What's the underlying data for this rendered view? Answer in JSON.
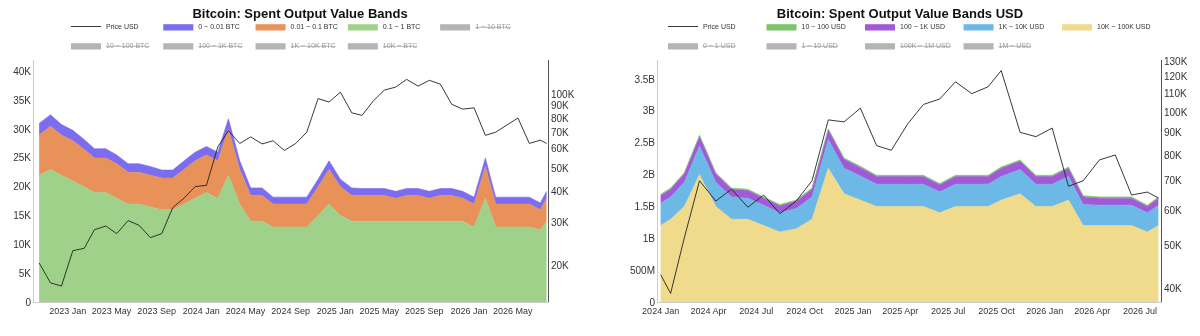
{
  "chart_data": [
    {
      "type": "area",
      "title": "Bitcoin: Spent Output Value Bands",
      "stacked": true,
      "legend": "top",
      "grid": false,
      "log": "y2",
      "x": [
        "2022-10-15",
        "2022-11-15",
        "2022-12-15",
        "2023-01-15",
        "2023-02-15",
        "2023-03-15",
        "2023-04-15",
        "2023-05-15",
        "2023-06-15",
        "2023-07-15",
        "2023-08-15",
        "2023-09-15",
        "2023-10-15",
        "2023-11-15",
        "2023-12-15",
        "2024-01-15",
        "2024-02-15",
        "2024-03-15",
        "2024-04-15",
        "2024-05-15",
        "2024-06-15",
        "2024-07-15",
        "2024-08-15",
        "2024-09-15",
        "2024-10-15",
        "2024-11-15",
        "2024-12-15",
        "2025-01-15",
        "2025-02-15",
        "2025-03-15",
        "2025-04-15",
        "2025-05-15",
        "2025-06-15",
        "2025-07-15",
        "2025-08-15",
        "2025-09-15",
        "2025-10-15",
        "2025-11-15",
        "2025-12-15",
        "2026-01-15",
        "2026-02-15",
        "2026-03-15",
        "2026-04-15",
        "2026-05-15",
        "2026-06-15",
        "2026-07-15",
        "2026-08-01"
      ],
      "xlim": [
        "2022-10-01",
        "2026-08-05"
      ],
      "xticks": [
        {
          "value": "2023-01-01",
          "label": "2023 Jan"
        },
        {
          "value": "2023-05-01",
          "label": "2023 May"
        },
        {
          "value": "2023-09-01",
          "label": "2023 Sep"
        },
        {
          "value": "2024-01-01",
          "label": "2024 Jan"
        },
        {
          "value": "2024-05-01",
          "label": "2024 May"
        },
        {
          "value": "2024-09-01",
          "label": "2024 Sep"
        },
        {
          "value": "2025-01-01",
          "label": "2025 Jan"
        },
        {
          "value": "2025-05-01",
          "label": "2025 May"
        },
        {
          "value": "2025-09-01",
          "label": "2025 Sep"
        },
        {
          "value": "2026-01-01",
          "label": "2026 Jan"
        },
        {
          "value": "2026-05-01",
          "label": "2026 May"
        }
      ],
      "ylim": [
        0,
        42000
      ],
      "yticks": [
        0,
        {
          "value": 5000,
          "label": "5K"
        },
        {
          "value": 10000,
          "label": "10K"
        },
        {
          "value": 15000,
          "label": "15K"
        },
        {
          "value": 20000,
          "label": "20K"
        },
        {
          "value": 25000,
          "label": "25K"
        },
        {
          "value": 30000,
          "label": "30K"
        },
        {
          "value": 35000,
          "label": "35K"
        },
        {
          "value": 40000,
          "label": "40K"
        }
      ],
      "y2lim": [
        14200,
        138000
      ],
      "y2ticks": [
        {
          "value": 20000,
          "label": "20K"
        },
        {
          "value": 30000,
          "label": "30K"
        },
        {
          "value": 40000,
          "label": "40K"
        },
        {
          "value": 50000,
          "label": "50K"
        },
        {
          "value": 60000,
          "label": "60K"
        },
        {
          "value": 70000,
          "label": "70K"
        },
        {
          "value": 80000,
          "label": "80K"
        },
        {
          "value": 90000,
          "label": "90K"
        },
        {
          "value": 100000,
          "label": "100K"
        }
      ],
      "series": [
        {
          "name": "Price USD",
          "type": "line",
          "axis": "y2",
          "color": "#222222",
          "values": [
            20500,
            17000,
            16500,
            23000,
            23500,
            28000,
            29000,
            27000,
            30500,
            29200,
            26000,
            27000,
            34500,
            37700,
            42000,
            42500,
            61000,
            71000,
            63000,
            67000,
            62700,
            64600,
            59000,
            63000,
            70000,
            96000,
            93000,
            102000,
            84000,
            82000,
            94000,
            104000,
            107000,
            115000,
            108000,
            114000,
            110000,
            91000,
            87000,
            88000,
            68000,
            70000,
            75000,
            80000,
            63000,
            65000,
            63000
          ]
        },
        {
          "name": "0.1 ~ 1 BTC",
          "color": "#9fd18a",
          "values": [
            22000,
            23000,
            22000,
            21000,
            20000,
            19000,
            19000,
            18000,
            17000,
            17000,
            16500,
            16000,
            16000,
            17000,
            18000,
            19000,
            18000,
            22000,
            17000,
            14000,
            14000,
            13000,
            13000,
            13000,
            13000,
            15000,
            17000,
            15000,
            14000,
            14000,
            14000,
            14000,
            14000,
            14000,
            14000,
            14000,
            14000,
            14000,
            14000,
            13000,
            18000,
            13000,
            13000,
            13000,
            13000,
            12500,
            14000
          ]
        },
        {
          "name": "0.01 ~ 0.1 BTC",
          "color": "#e8925a",
          "values": [
            7000,
            7500,
            7000,
            7000,
            6500,
            6000,
            6000,
            6000,
            5500,
            5500,
            5500,
            5500,
            5500,
            6000,
            6500,
            6500,
            6500,
            8000,
            6000,
            4500,
            4500,
            4000,
            4000,
            4000,
            4000,
            5000,
            6000,
            5000,
            4500,
            4500,
            4500,
            4500,
            4000,
            4500,
            4500,
            4000,
            4500,
            4500,
            4000,
            4000,
            5500,
            4000,
            4000,
            4000,
            4000,
            3500,
            4000
          ]
        },
        {
          "name": "0 ~ 0.01 BTC",
          "color": "#7b6cf0",
          "values": [
            2000,
            2000,
            1800,
            1800,
            1700,
            1600,
            1600,
            1500,
            1500,
            1500,
            1500,
            1400,
            1400,
            1500,
            1500,
            1500,
            1500,
            1800,
            1500,
            1300,
            1300,
            1200,
            1200,
            1200,
            1200,
            1300,
            1500,
            1300,
            1300,
            1200,
            1200,
            1200,
            1200,
            1200,
            1200,
            1200,
            1200,
            1200,
            1200,
            1200,
            1500,
            1200,
            1200,
            1200,
            1200,
            1200,
            1200
          ]
        },
        {
          "name": "1 ~ 10 BTC",
          "color": "#6b6b73",
          "values": [
            null,
            null,
            null,
            null,
            null,
            null,
            null,
            null,
            null,
            null,
            null,
            null,
            null,
            null,
            null,
            null,
            null,
            null,
            null,
            null,
            null,
            null,
            null,
            null,
            null,
            null,
            null,
            null,
            null,
            null,
            null,
            null,
            null,
            null,
            null,
            null,
            null,
            null,
            null,
            null,
            null,
            null,
            null,
            null,
            null,
            null,
            null
          ]
        },
        {
          "name": "10 ~ 100 BTC",
          "color": "#6b6b73",
          "values": [
            null,
            null,
            null,
            null,
            null,
            null,
            null,
            null,
            null,
            null,
            null,
            null,
            null,
            null,
            null,
            null,
            null,
            null,
            null,
            null,
            null,
            null,
            null,
            null,
            null,
            null,
            null,
            null,
            null,
            null,
            null,
            null,
            null,
            null,
            null,
            null,
            null,
            null,
            null,
            null,
            null,
            null,
            null,
            null,
            null,
            null,
            null
          ]
        },
        {
          "name": "100 ~ 1K BTC",
          "color": "#6b6b73",
          "values": [
            null,
            null,
            null,
            null,
            null,
            null,
            null,
            null,
            null,
            null,
            null,
            null,
            null,
            null,
            null,
            null,
            null,
            null,
            null,
            null,
            null,
            null,
            null,
            null,
            null,
            null,
            null,
            null,
            null,
            null,
            null,
            null,
            null,
            null,
            null,
            null,
            null,
            null,
            null,
            null,
            null,
            null,
            null,
            null,
            null,
            null,
            null
          ]
        },
        {
          "name": "1K ~ 10K BTC",
          "color": "#6b6b73",
          "values": [
            null,
            null,
            null,
            null,
            null,
            null,
            null,
            null,
            null,
            null,
            null,
            null,
            null,
            null,
            null,
            null,
            null,
            null,
            null,
            null,
            null,
            null,
            null,
            null,
            null,
            null,
            null,
            null,
            null,
            null,
            null,
            null,
            null,
            null,
            null,
            null,
            null,
            null,
            null,
            null,
            null,
            null,
            null,
            null,
            null,
            null,
            null
          ]
        },
        {
          "name": "10K ~ BTC",
          "color": "#6b6b73",
          "values": [
            null,
            null,
            null,
            null,
            null,
            null,
            null,
            null,
            null,
            null,
            null,
            null,
            null,
            null,
            null,
            null,
            null,
            null,
            null,
            null,
            null,
            null,
            null,
            null,
            null,
            null,
            null,
            null,
            null,
            null,
            null,
            null,
            null,
            null,
            null,
            null,
            null,
            null,
            null,
            null,
            null,
            null,
            null,
            null,
            null,
            null,
            null
          ]
        }
      ]
    },
    {
      "type": "area",
      "title": "Bitcoin: Spent Output Value Bands USD",
      "stacked": true,
      "legend": "top",
      "grid": false,
      "log": "y2",
      "x": [
        "2024-01-01",
        "2024-01-20",
        "2024-02-15",
        "2024-03-15",
        "2024-04-15",
        "2024-05-15",
        "2024-06-15",
        "2024-07-15",
        "2024-08-15",
        "2024-09-15",
        "2024-10-15",
        "2024-11-15",
        "2024-12-15",
        "2025-01-15",
        "2025-02-15",
        "2025-03-15",
        "2025-04-15",
        "2025-05-15",
        "2025-06-15",
        "2025-07-15",
        "2025-08-15",
        "2025-09-15",
        "2025-10-10",
        "2025-11-15",
        "2025-12-15",
        "2026-01-15",
        "2026-02-15",
        "2026-03-15",
        "2026-04-15",
        "2026-05-15",
        "2026-06-15",
        "2026-07-15",
        "2026-08-05"
      ],
      "xlim": [
        "2023-12-27",
        "2026-08-10"
      ],
      "xticks": [
        {
          "value": "2024-01-01",
          "label": "2024 Jan"
        },
        {
          "value": "2024-04-01",
          "label": "2024 Apr"
        },
        {
          "value": "2024-07-01",
          "label": "2024 Jul"
        },
        {
          "value": "2024-10-01",
          "label": "2024 Oct"
        },
        {
          "value": "2025-01-01",
          "label": "2025 Jan"
        },
        {
          "value": "2025-04-01",
          "label": "2025 Apr"
        },
        {
          "value": "2025-07-01",
          "label": "2025 Jul"
        },
        {
          "value": "2025-10-01",
          "label": "2025 Oct"
        },
        {
          "value": "2026-01-01",
          "label": "2026 Jan"
        },
        {
          "value": "2026-04-01",
          "label": "2026 Apr"
        },
        {
          "value": "2026-07-01",
          "label": "2026 Jul"
        }
      ],
      "ylim": [
        0,
        3800000000
      ],
      "yticks": [
        0,
        {
          "value": 500000000,
          "label": "500M"
        },
        {
          "value": 1000000000,
          "label": "1B"
        },
        {
          "value": 1500000000,
          "label": "1.5B"
        },
        {
          "value": 2000000000,
          "label": "2B"
        },
        {
          "value": 2500000000,
          "label": "2.5B"
        },
        {
          "value": 3000000000,
          "label": "3B"
        },
        {
          "value": 3500000000,
          "label": "3.5B"
        }
      ],
      "y2lim": [
        37300,
        131000
      ],
      "y2ticks": [
        {
          "value": 40000,
          "label": "40K"
        },
        {
          "value": 50000,
          "label": "50K"
        },
        {
          "value": 60000,
          "label": "60K"
        },
        {
          "value": 70000,
          "label": "70K"
        },
        {
          "value": 80000,
          "label": "80K"
        },
        {
          "value": 90000,
          "label": "90K"
        },
        {
          "value": 100000,
          "label": "100K"
        },
        {
          "value": 110000,
          "label": "110K"
        },
        {
          "value": 120000,
          "label": "120K"
        },
        {
          "value": 130000,
          "label": "130K"
        }
      ],
      "series": [
        {
          "name": "Price USD",
          "type": "line",
          "axis": "y2",
          "color": "#222222",
          "values": [
            43000,
            39000,
            52000,
            70000,
            63000,
            67000,
            61000,
            65000,
            59000,
            63000,
            70000,
            96000,
            95000,
            102000,
            84000,
            82000,
            94000,
            104000,
            107000,
            117000,
            110000,
            114000,
            124000,
            90000,
            88000,
            92000,
            68000,
            70000,
            78000,
            80000,
            65000,
            66000,
            64000
          ]
        },
        {
          "name": "10K ~ 100K USD",
          "color": "#f0da8c",
          "values": [
            1200000000,
            1300000000,
            1500000000,
            2000000000,
            1500000000,
            1300000000,
            1300000000,
            1200000000,
            1100000000,
            1150000000,
            1300000000,
            2100000000,
            1700000000,
            1600000000,
            1500000000,
            1500000000,
            1500000000,
            1500000000,
            1400000000,
            1500000000,
            1500000000,
            1500000000,
            1600000000,
            1700000000,
            1500000000,
            1500000000,
            1600000000,
            1200000000,
            1200000000,
            1200000000,
            1200000000,
            1100000000,
            1200000000
          ]
        },
        {
          "name": "1K ~ 10K USD",
          "color": "#6cb8e6",
          "values": [
            350000000,
            350000000,
            380000000,
            450000000,
            380000000,
            350000000,
            330000000,
            320000000,
            300000000,
            320000000,
            350000000,
            450000000,
            400000000,
            380000000,
            350000000,
            350000000,
            350000000,
            350000000,
            330000000,
            350000000,
            350000000,
            350000000,
            370000000,
            380000000,
            350000000,
            350000000,
            370000000,
            330000000,
            320000000,
            320000000,
            320000000,
            300000000,
            320000000
          ]
        },
        {
          "name": "100 ~ 1K USD",
          "color": "#a259d9",
          "values": [
            120000000,
            120000000,
            130000000,
            150000000,
            130000000,
            120000000,
            120000000,
            110000000,
            110000000,
            110000000,
            120000000,
            150000000,
            140000000,
            130000000,
            120000000,
            120000000,
            120000000,
            120000000,
            110000000,
            120000000,
            120000000,
            120000000,
            130000000,
            130000000,
            120000000,
            120000000,
            130000000,
            120000000,
            110000000,
            110000000,
            110000000,
            100000000,
            110000000
          ]
        },
        {
          "name": "10 ~ 100 USD",
          "color": "#7cc46a",
          "values": [
            20000000,
            20000000,
            20000000,
            20000000,
            20000000,
            20000000,
            20000000,
            20000000,
            20000000,
            20000000,
            20000000,
            20000000,
            20000000,
            20000000,
            20000000,
            20000000,
            20000000,
            20000000,
            20000000,
            20000000,
            20000000,
            20000000,
            20000000,
            20000000,
            20000000,
            20000000,
            20000000,
            20000000,
            20000000,
            20000000,
            20000000,
            20000000,
            20000000
          ]
        },
        {
          "name": "0 ~ 1 USD",
          "color": "#6b6b73",
          "values": [
            null,
            null,
            null,
            null,
            null,
            null,
            null,
            null,
            null,
            null,
            null,
            null,
            null,
            null,
            null,
            null,
            null,
            null,
            null,
            null,
            null,
            null,
            null,
            null,
            null,
            null,
            null,
            null,
            null,
            null,
            null,
            null,
            null
          ]
        },
        {
          "name": "1 ~ 10 USD",
          "color": "#6b6b73",
          "values": [
            null,
            null,
            null,
            null,
            null,
            null,
            null,
            null,
            null,
            null,
            null,
            null,
            null,
            null,
            null,
            null,
            null,
            null,
            null,
            null,
            null,
            null,
            null,
            null,
            null,
            null,
            null,
            null,
            null,
            null,
            null,
            null,
            null
          ]
        },
        {
          "name": "100K ~ 1M USD",
          "color": "#6b6b73",
          "values": [
            null,
            null,
            null,
            null,
            null,
            null,
            null,
            null,
            null,
            null,
            null,
            null,
            null,
            null,
            null,
            null,
            null,
            null,
            null,
            null,
            null,
            null,
            null,
            null,
            null,
            null,
            null,
            null,
            null,
            null,
            null,
            null,
            null
          ]
        },
        {
          "name": "1M ~ USD",
          "color": "#6b6b73",
          "values": [
            null,
            null,
            null,
            null,
            null,
            null,
            null,
            null,
            null,
            null,
            null,
            null,
            null,
            null,
            null,
            null,
            null,
            null,
            null,
            null,
            null,
            null,
            null,
            null,
            null,
            null,
            null,
            null,
            null,
            null,
            null,
            null,
            null
          ]
        }
      ]
    }
  ]
}
